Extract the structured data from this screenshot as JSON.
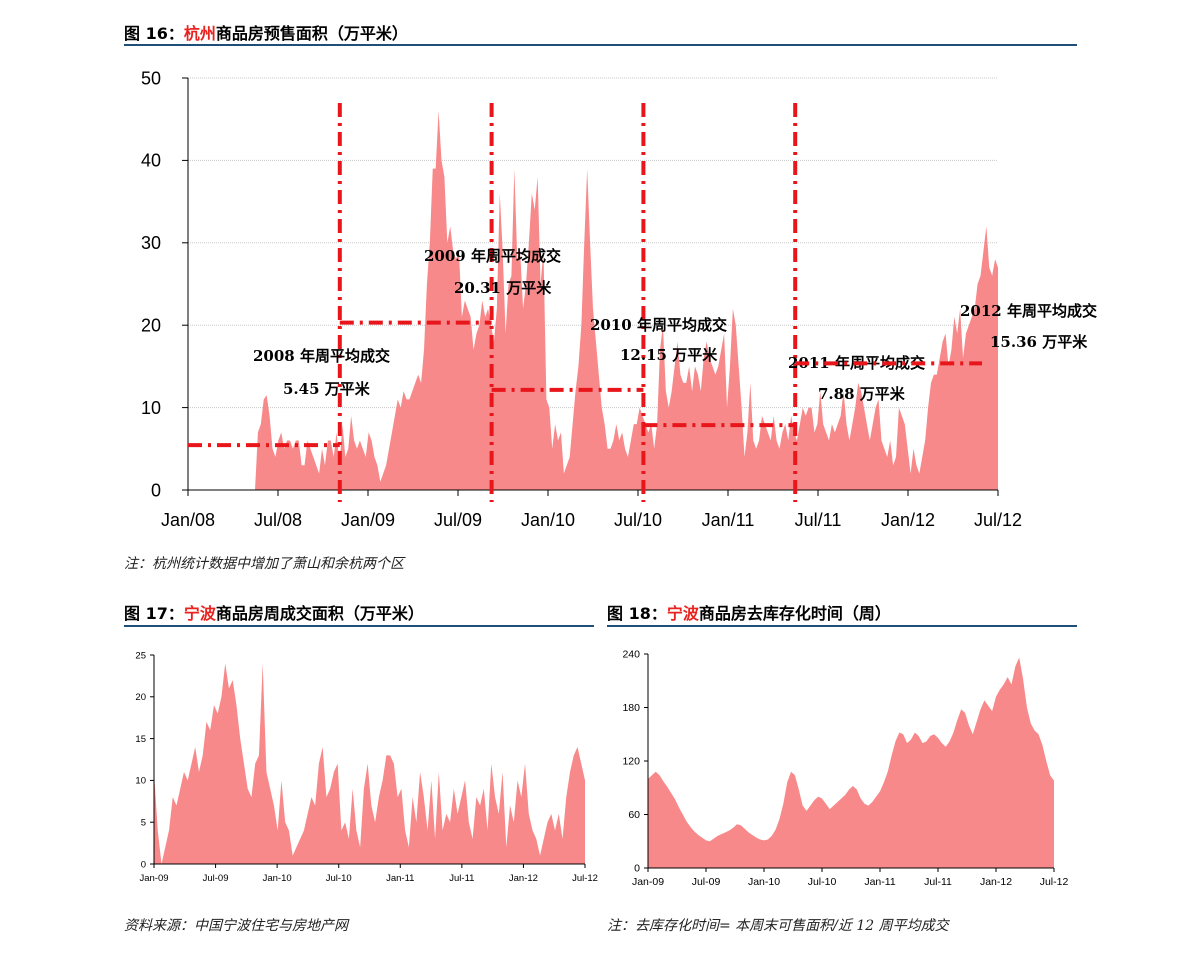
{
  "fig16": {
    "prefix": "图 16：",
    "city": "杭州",
    "rest": "商品房预售面积（万平米）",
    "note": "注：杭州统计数据中增加了萧山和余杭两个区"
  },
  "fig17": {
    "prefix": "图 17：",
    "city": "宁波",
    "rest": "商品房周成交面积（万平米）",
    "note": "资料来源：中国宁波住宅与房地产网"
  },
  "fig18": {
    "prefix": "图 18：",
    "city": "宁波",
    "rest": "商品房去库存化时间（周）",
    "note": "注：去库存化时间= 本周末可售面积/近 12 周平均成交"
  },
  "colors": {
    "fill": "#f7898a",
    "dash": "#e8161b",
    "rule": "#1f4e79",
    "city": "#e8231f"
  },
  "chart_data": [
    {
      "id": "chart16",
      "type": "area",
      "title": "杭州商品房预售面积（万平米）",
      "ylim": [
        0,
        50
      ],
      "yticks": [
        0,
        10,
        20,
        30,
        40,
        50
      ],
      "xticks": [
        "Jan/08",
        "Jul/08",
        "Jan/09",
        "Jul/09",
        "Jan/10",
        "Jul/10",
        "Jan/11",
        "Jul/11",
        "Jan/12",
        "Jul/12"
      ],
      "grid": true,
      "series": [
        {
          "values": [
            0,
            0,
            0,
            0,
            0,
            0,
            0,
            0,
            0,
            0,
            0,
            0,
            0,
            0,
            0,
            0,
            0,
            0,
            0,
            0,
            0,
            0,
            0,
            0,
            7,
            8,
            11,
            11.5,
            9,
            5,
            4,
            6,
            7,
            5,
            6,
            6,
            5,
            6,
            6,
            3,
            3,
            6,
            5,
            4,
            3,
            2,
            5,
            3,
            6,
            6,
            4,
            7,
            3,
            8,
            4,
            5,
            9,
            6,
            5,
            6,
            5,
            4,
            7,
            6,
            4,
            3,
            1,
            2,
            3,
            5,
            7,
            9,
            11,
            10,
            12,
            11,
            11,
            12,
            13,
            14,
            13,
            17,
            25,
            30,
            39,
            39,
            46,
            40,
            38,
            30,
            32,
            29,
            28,
            29,
            21,
            23,
            22,
            21,
            17,
            19,
            20,
            23,
            21,
            22,
            20,
            18,
            22,
            36,
            29,
            19,
            25,
            26,
            39,
            28,
            29,
            22,
            25,
            30,
            36,
            34,
            38,
            25,
            29,
            11,
            10,
            5,
            8,
            6,
            7,
            2,
            3,
            4,
            8,
            12,
            15,
            20,
            30,
            39,
            30,
            22,
            18,
            14,
            10,
            8,
            5,
            5,
            6,
            8,
            6,
            7,
            5,
            4,
            6,
            8,
            8,
            10,
            9,
            8,
            7,
            8,
            5,
            8,
            17,
            20,
            12,
            10,
            12,
            15,
            18,
            14,
            13,
            13,
            15,
            12,
            15,
            14,
            12,
            16,
            18,
            16,
            15,
            14,
            15,
            17,
            19,
            10,
            15,
            22,
            20,
            15,
            10,
            4,
            7,
            13,
            6,
            5,
            6,
            9,
            8,
            7,
            6,
            9,
            6,
            5,
            7,
            8,
            6,
            9,
            7,
            6,
            8,
            10,
            9,
            10,
            10,
            7,
            8,
            12,
            8,
            7,
            6,
            8,
            7,
            8,
            9,
            12,
            8,
            6,
            8,
            10,
            13,
            12,
            10,
            8,
            6,
            8,
            10,
            11,
            6,
            5,
            4,
            6,
            3,
            4,
            10,
            9,
            8,
            5,
            2,
            5,
            3,
            2,
            4,
            6,
            10,
            13,
            14,
            14,
            16,
            18,
            19,
            15,
            17,
            21,
            19,
            22,
            16,
            19,
            20,
            21,
            22,
            25,
            26,
            29,
            32,
            27,
            26,
            28,
            27
          ],
          "color": "#f7898a"
        }
      ],
      "annotations": [
        {
          "year_label": "2008 年周平均成交",
          "value_label": "5.45 万平米",
          "avg": 5.45
        },
        {
          "year_label": "2009 年周平均成交",
          "value_label": "20.31 万平米",
          "avg": 20.31
        },
        {
          "year_label": "2010 年周平均成交",
          "value_label": "12.15 万平米",
          "avg": 12.15
        },
        {
          "year_label": "2011 年周平均成交",
          "value_label": "7.88 万平米",
          "avg": 7.88
        },
        {
          "year_label": "2012 年周平均成交",
          "value_label": "15.36 万平米",
          "avg": 15.36
        }
      ]
    },
    {
      "id": "chart17",
      "type": "area",
      "title": "宁波商品房周成交面积（万平米）",
      "ylim": [
        0,
        25
      ],
      "yticks": [
        0,
        5,
        10,
        15,
        20,
        25
      ],
      "xticks": [
        "Jan-09",
        "Jul-09",
        "Jan-10",
        "Jul-10",
        "Jan-11",
        "Jul-11",
        "Jan-12",
        "Jul-12"
      ],
      "grid": false,
      "series": [
        {
          "values": [
            11,
            4,
            0,
            2,
            4,
            8,
            7,
            9,
            11,
            10,
            12,
            14,
            11,
            13,
            17,
            16,
            19,
            18,
            20,
            24,
            21,
            22,
            19,
            15,
            12,
            9,
            8,
            12,
            13,
            24,
            11,
            9,
            7,
            4,
            10,
            5,
            4,
            1,
            2,
            3,
            4,
            6,
            8,
            7,
            12,
            14,
            8,
            9,
            11,
            12,
            4,
            5,
            3,
            9,
            4,
            2,
            9,
            12,
            7,
            5,
            8,
            10,
            13,
            13,
            12,
            8,
            9,
            4,
            2,
            8,
            5,
            11,
            8,
            4,
            10,
            3,
            11,
            4,
            6,
            5,
            9,
            6,
            8,
            10,
            5,
            3,
            8,
            7,
            9,
            4,
            12,
            8,
            6,
            11,
            2,
            7,
            5,
            10,
            8,
            12,
            6,
            4,
            3,
            1,
            3,
            5,
            6,
            4,
            6,
            3,
            8,
            11,
            13,
            14,
            12,
            10
          ],
          "color": "#f7898a"
        }
      ]
    },
    {
      "id": "chart18",
      "type": "area",
      "title": "宁波商品房去库存化时间（周）",
      "ylim": [
        0,
        240
      ],
      "yticks": [
        0,
        60,
        120,
        180,
        240
      ],
      "xticks": [
        "Jan-09",
        "Jul-09",
        "Jan-10",
        "Jul-10",
        "Jan-11",
        "Jul-11",
        "Jan-12",
        "Jul-12"
      ],
      "grid": false,
      "series": [
        {
          "values": [
            100,
            104,
            108,
            104,
            97,
            91,
            84,
            77,
            68,
            60,
            52,
            46,
            41,
            37,
            34,
            31,
            30,
            33,
            36,
            38,
            40,
            42,
            45,
            49,
            48,
            44,
            40,
            37,
            34,
            32,
            31,
            32,
            36,
            43,
            55,
            72,
            96,
            108,
            104,
            88,
            70,
            64,
            70,
            76,
            80,
            78,
            72,
            66,
            70,
            74,
            78,
            82,
            88,
            92,
            88,
            78,
            72,
            70,
            74,
            80,
            86,
            96,
            108,
            126,
            142,
            152,
            150,
            140,
            144,
            152,
            148,
            140,
            142,
            148,
            150,
            146,
            140,
            136,
            142,
            152,
            166,
            178,
            174,
            160,
            150,
            164,
            178,
            188,
            182,
            176,
            192,
            200,
            206,
            214,
            206,
            226,
            236,
            212,
            180,
            162,
            154,
            150,
            138,
            120,
            104,
            98
          ],
          "color": "#f7898a"
        }
      ]
    }
  ]
}
